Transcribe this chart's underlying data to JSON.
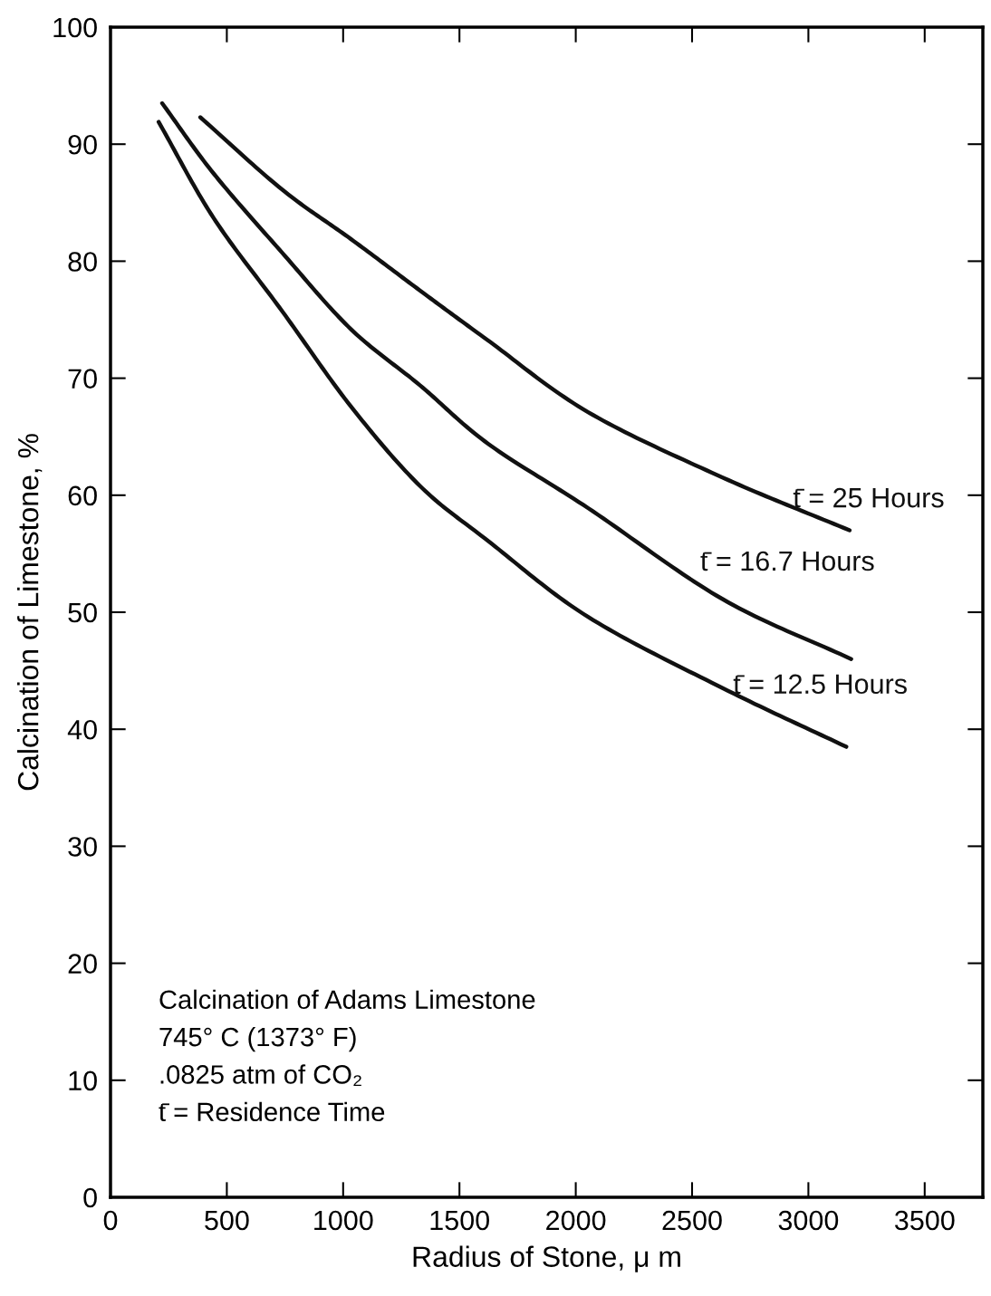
{
  "chart_data": {
    "type": "line",
    "xlabel": "Radius of Stone, μ m",
    "ylabel": "Calcination of Limestone, %",
    "xlim": [
      0,
      3750
    ],
    "ylim": [
      0,
      100
    ],
    "xticks": [
      0,
      500,
      1000,
      1500,
      2000,
      2500,
      3000,
      3500
    ],
    "yticks": [
      0,
      10,
      20,
      30,
      40,
      50,
      60,
      70,
      80,
      90,
      100
    ],
    "grid": false,
    "legend": false,
    "marker": "none",
    "line_style": "solid",
    "series": [
      {
        "name": "t̄ = 25 Hours",
        "color": "#111111",
        "x": [
          386,
          739,
          1033,
          1330,
          1618,
          2053,
          2633,
          3177
        ],
        "values": [
          92.3,
          86.1,
          81.9,
          77.5,
          73.3,
          67.1,
          61.5,
          57.0
        ]
      },
      {
        "name": "t̄ = 16.7 Hours",
        "color": "#111111",
        "x": [
          222,
          443,
          739,
          1033,
          1330,
          1623,
          2053,
          2633,
          3184
        ],
        "values": [
          93.5,
          87.5,
          80.7,
          74.2,
          69.4,
          64.4,
          58.9,
          51.1,
          46.0
        ]
      },
      {
        "name": "t̄ = 12.5 Hours",
        "color": "#111111",
        "x": [
          207,
          443,
          739,
          1033,
          1330,
          1623,
          2053,
          2633,
          3163
        ],
        "values": [
          91.9,
          83.7,
          75.7,
          67.6,
          60.8,
          56.1,
          49.6,
          43.5,
          38.5
        ]
      }
    ],
    "annotations": [
      "Calcination of Adams Limestone",
      "745° C (1373° F)",
      ".0825 atm of CO₂",
      "t̄ = Residence Time"
    ]
  }
}
